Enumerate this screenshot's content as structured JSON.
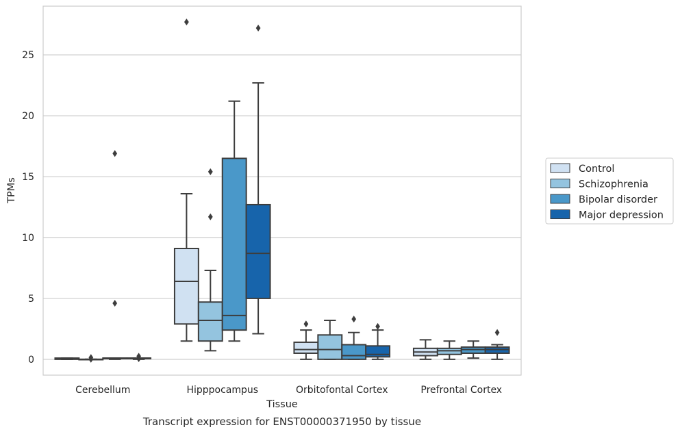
{
  "chart_data": {
    "type": "box",
    "title": "Transcript expression for ENST00000371950 by tissue",
    "xlabel": "Tissue",
    "ylabel": "TPMs",
    "ylim": [
      -1.3,
      29
    ],
    "yticks": [
      0,
      5,
      10,
      15,
      20,
      25
    ],
    "grid": true,
    "legend_position": "right",
    "categories": [
      "Cerebellum",
      "Hipppocampus",
      "Orbitofontal Cortex",
      "Prefrontal Cortex"
    ],
    "series": [
      {
        "name": "Control",
        "color": "#d0e1f2",
        "boxes": [
          {
            "whislo": 0.0,
            "q1": 0.0,
            "med": 0.05,
            "q3": 0.1,
            "whishi": 0.1,
            "fliers": []
          },
          {
            "whislo": 1.5,
            "q1": 2.9,
            "med": 6.4,
            "q3": 9.1,
            "whishi": 13.6,
            "fliers": [
              27.7
            ]
          },
          {
            "whislo": 0.0,
            "q1": 0.5,
            "med": 0.8,
            "q3": 1.4,
            "whishi": 2.4,
            "fliers": [
              2.9
            ]
          },
          {
            "whislo": 0.0,
            "q1": 0.3,
            "med": 0.6,
            "q3": 0.9,
            "whishi": 1.6,
            "fliers": []
          }
        ]
      },
      {
        "name": "Schizophrenia",
        "color": "#94c4df",
        "boxes": [
          {
            "whislo": 0.0,
            "q1": 0.0,
            "med": 0.0,
            "q3": 0.0,
            "whishi": 0.0,
            "fliers": [
              0.15,
              0.0
            ]
          },
          {
            "whislo": 0.7,
            "q1": 1.5,
            "med": 3.2,
            "q3": 4.7,
            "whishi": 7.3,
            "fliers": [
              15.4,
              11.7
            ]
          },
          {
            "whislo": 0.0,
            "q1": 0.0,
            "med": 0.8,
            "q3": 2.0,
            "whishi": 3.2,
            "fliers": []
          },
          {
            "whislo": 0.0,
            "q1": 0.4,
            "med": 0.7,
            "q3": 0.9,
            "whishi": 1.5,
            "fliers": []
          }
        ]
      },
      {
        "name": "Bipolar disorder",
        "color": "#4a98c9",
        "boxes": [
          {
            "whislo": 0.0,
            "q1": 0.05,
            "med": 0.1,
            "q3": 0.1,
            "whishi": 0.1,
            "fliers": [
              16.9,
              4.6
            ]
          },
          {
            "whislo": 1.5,
            "q1": 2.4,
            "med": 3.6,
            "q3": 16.5,
            "whishi": 21.2,
            "fliers": []
          },
          {
            "whislo": 0.0,
            "q1": 0.0,
            "med": 0.3,
            "q3": 1.2,
            "whishi": 2.2,
            "fliers": [
              3.3
            ]
          },
          {
            "whislo": 0.1,
            "q1": 0.5,
            "med": 0.8,
            "q3": 1.0,
            "whishi": 1.5,
            "fliers": []
          }
        ]
      },
      {
        "name": "Major depression",
        "color": "#1764ab",
        "boxes": [
          {
            "whislo": 0.0,
            "q1": 0.05,
            "med": 0.1,
            "q3": 0.1,
            "whishi": 0.1,
            "fliers": [
              0.25,
              0.05
            ]
          },
          {
            "whislo": 2.1,
            "q1": 5.0,
            "med": 8.7,
            "q3": 12.7,
            "whishi": 22.7,
            "fliers": [
              27.2
            ]
          },
          {
            "whislo": 0.0,
            "q1": 0.2,
            "med": 0.4,
            "q3": 1.1,
            "whishi": 2.4,
            "fliers": [
              2.7
            ]
          },
          {
            "whislo": 0.0,
            "q1": 0.5,
            "med": 0.8,
            "q3": 1.0,
            "whishi": 1.2,
            "fliers": [
              2.2
            ]
          }
        ]
      }
    ]
  }
}
